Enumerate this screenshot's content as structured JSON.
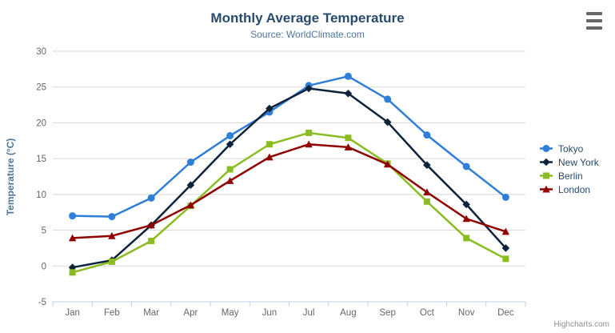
{
  "chart_data": {
    "type": "line",
    "title": "Monthly Average Temperature",
    "subtitle": "Source: WorldClimate.com",
    "xlabel": "",
    "ylabel": "Temperature (°C)",
    "categories": [
      "Jan",
      "Feb",
      "Mar",
      "Apr",
      "May",
      "Jun",
      "Jul",
      "Aug",
      "Sep",
      "Oct",
      "Nov",
      "Dec"
    ],
    "ylim": [
      -5,
      30
    ],
    "yticks": [
      -5,
      0,
      5,
      10,
      15,
      20,
      25,
      30
    ],
    "grid": true,
    "legend_position": "right",
    "series": [
      {
        "name": "Tokyo",
        "color": "#2f7ed8",
        "marker": "circle",
        "values": [
          7.0,
          6.9,
          9.5,
          14.5,
          18.2,
          21.5,
          25.2,
          26.5,
          23.3,
          18.3,
          13.9,
          9.6
        ]
      },
      {
        "name": "New York",
        "color": "#0d233a",
        "marker": "diamond",
        "values": [
          -0.2,
          0.8,
          5.7,
          11.3,
          17.0,
          22.0,
          24.8,
          24.1,
          20.1,
          14.1,
          8.6,
          2.5
        ]
      },
      {
        "name": "Berlin",
        "color": "#8bbc21",
        "marker": "square",
        "values": [
          -0.9,
          0.6,
          3.5,
          8.4,
          13.5,
          17.0,
          18.6,
          17.9,
          14.3,
          9.0,
          3.9,
          1.0
        ]
      },
      {
        "name": "London",
        "color": "#910000",
        "marker": "triangle",
        "values": [
          3.9,
          4.2,
          5.7,
          8.5,
          11.9,
          15.2,
          17.0,
          16.6,
          14.2,
          10.3,
          6.6,
          4.8
        ]
      }
    ],
    "colors": {
      "grid_line": "#d8d8d8",
      "axis_line": "#c0d0e0",
      "tick_label": "#666666",
      "title_text": "#274b6d",
      "subtitle_text": "#4d759e"
    }
  },
  "export_menu": {
    "icon": "hamburger-icon"
  },
  "credits": {
    "label": "Highcharts.com"
  }
}
